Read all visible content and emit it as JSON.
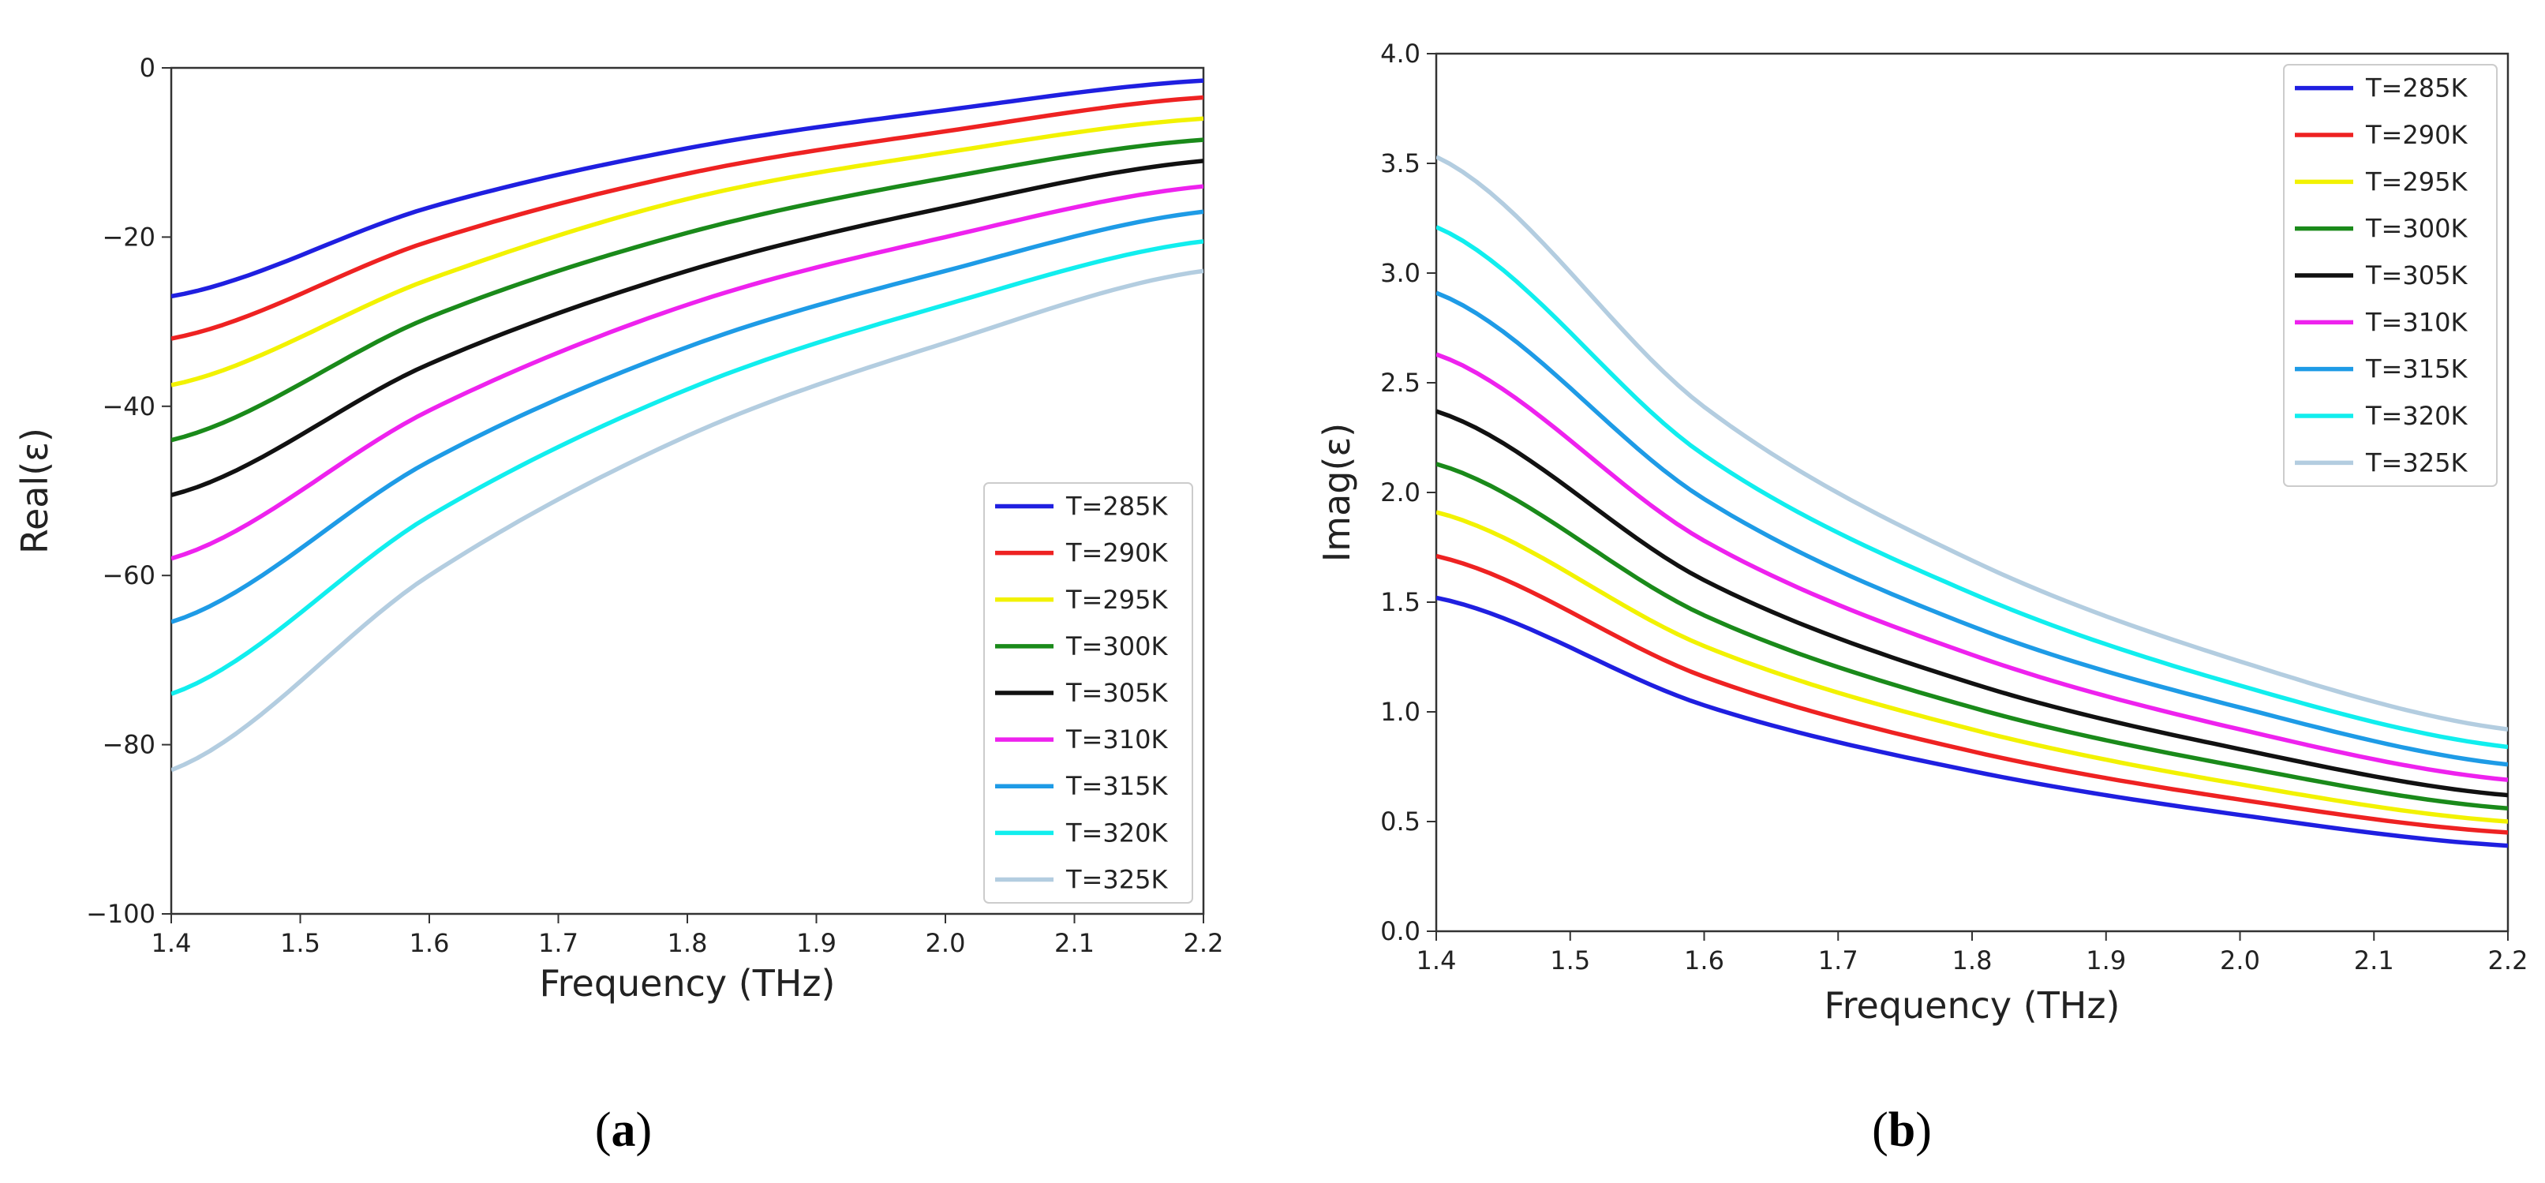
{
  "chart_data": [
    {
      "type": "line",
      "caption": "a",
      "xlabel": "Frequency (THz)",
      "ylabel": "Real(ε)",
      "xlim": [
        1.4,
        2.2
      ],
      "ylim": [
        -100,
        0
      ],
      "xticks": [
        "1.4",
        "1.5",
        "1.6",
        "1.7",
        "1.8",
        "1.9",
        "2.0",
        "2.1",
        "2.2"
      ],
      "yticks": [
        "0",
        "−20",
        "−40",
        "−60",
        "−80",
        "−100"
      ],
      "ytick_values": [
        0,
        -20,
        -40,
        -60,
        -80,
        -100
      ],
      "legend_position": "lower-right",
      "series": [
        {
          "name": "T=285K",
          "color": "#1f1fe0",
          "x": [
            1.4,
            1.6,
            1.8,
            2.0,
            2.2
          ],
          "values": [
            -27.0,
            -16.5,
            -9.5,
            -5.0,
            -1.5
          ]
        },
        {
          "name": "T=290K",
          "color": "#ee2222",
          "x": [
            1.4,
            1.6,
            1.8,
            2.0,
            2.2
          ],
          "values": [
            -32.0,
            -20.5,
            -12.5,
            -7.5,
            -3.5
          ]
        },
        {
          "name": "T=295K",
          "color": "#f2f200",
          "x": [
            1.4,
            1.6,
            1.8,
            2.0,
            2.2
          ],
          "values": [
            -37.5,
            -25.0,
            -15.5,
            -10.0,
            -6.0
          ]
        },
        {
          "name": "T=300K",
          "color": "#1a8a1a",
          "x": [
            1.4,
            1.6,
            1.8,
            2.0,
            2.2
          ],
          "values": [
            -44.0,
            -29.5,
            -19.5,
            -13.0,
            -8.5
          ]
        },
        {
          "name": "T=305K",
          "color": "#111111",
          "x": [
            1.4,
            1.6,
            1.8,
            2.0,
            2.2
          ],
          "values": [
            -50.5,
            -35.0,
            -24.0,
            -16.5,
            -11.0
          ]
        },
        {
          "name": "T=310K",
          "color": "#ee22ee",
          "x": [
            1.4,
            1.6,
            1.8,
            2.0,
            2.2
          ],
          "values": [
            -58.0,
            -40.5,
            -28.0,
            -20.0,
            -14.0
          ]
        },
        {
          "name": "T=315K",
          "color": "#1e9be6",
          "x": [
            1.4,
            1.6,
            1.8,
            2.0,
            2.2
          ],
          "values": [
            -65.5,
            -46.5,
            -33.0,
            -24.0,
            -17.0
          ]
        },
        {
          "name": "T=320K",
          "color": "#11eeee",
          "x": [
            1.4,
            1.6,
            1.8,
            2.0,
            2.2
          ],
          "values": [
            -74.0,
            -53.0,
            -38.0,
            -28.0,
            -20.5
          ]
        },
        {
          "name": "T=325K",
          "color": "#b3cde0",
          "x": [
            1.4,
            1.6,
            1.8,
            2.0,
            2.2
          ],
          "values": [
            -83.0,
            -60.0,
            -43.5,
            -32.5,
            -24.0
          ]
        }
      ]
    },
    {
      "type": "line",
      "caption": "b",
      "xlabel": "Frequency (THz)",
      "ylabel": "Imag(ε)",
      "xlim": [
        1.4,
        2.2
      ],
      "ylim": [
        0,
        4
      ],
      "xticks": [
        "1.4",
        "1.5",
        "1.6",
        "1.7",
        "1.8",
        "1.9",
        "2.0",
        "2.1",
        "2.2"
      ],
      "yticks": [
        "0.0",
        "0.5",
        "1.0",
        "1.5",
        "2.0",
        "2.5",
        "3.0",
        "3.5",
        "4.0"
      ],
      "ytick_values": [
        0,
        0.5,
        1.0,
        1.5,
        2.0,
        2.5,
        3.0,
        3.5,
        4.0
      ],
      "legend_position": "upper-right",
      "series": [
        {
          "name": "T=285K",
          "color": "#1f1fe0",
          "x": [
            1.4,
            1.6,
            1.8,
            2.0,
            2.2
          ],
          "values": [
            1.52,
            1.03,
            0.73,
            0.53,
            0.39
          ]
        },
        {
          "name": "T=290K",
          "color": "#ee2222",
          "x": [
            1.4,
            1.6,
            1.8,
            2.0,
            2.2
          ],
          "values": [
            1.71,
            1.16,
            0.82,
            0.6,
            0.45
          ]
        },
        {
          "name": "T=295K",
          "color": "#f2f200",
          "x": [
            1.4,
            1.6,
            1.8,
            2.0,
            2.2
          ],
          "values": [
            1.91,
            1.3,
            0.92,
            0.67,
            0.5
          ]
        },
        {
          "name": "T=300K",
          "color": "#1a8a1a",
          "x": [
            1.4,
            1.6,
            1.8,
            2.0,
            2.2
          ],
          "values": [
            2.13,
            1.44,
            1.02,
            0.75,
            0.56
          ]
        },
        {
          "name": "T=305K",
          "color": "#111111",
          "x": [
            1.4,
            1.6,
            1.8,
            2.0,
            2.2
          ],
          "values": [
            2.37,
            1.6,
            1.13,
            0.83,
            0.62
          ]
        },
        {
          "name": "T=310K",
          "color": "#ee22ee",
          "x": [
            1.4,
            1.6,
            1.8,
            2.0,
            2.2
          ],
          "values": [
            2.63,
            1.78,
            1.26,
            0.92,
            0.69
          ]
        },
        {
          "name": "T=315K",
          "color": "#1e9be6",
          "x": [
            1.4,
            1.6,
            1.8,
            2.0,
            2.2
          ],
          "values": [
            2.91,
            1.97,
            1.39,
            1.02,
            0.76
          ]
        },
        {
          "name": "T=320K",
          "color": "#11eeee",
          "x": [
            1.4,
            1.6,
            1.8,
            2.0,
            2.2
          ],
          "values": [
            3.21,
            2.17,
            1.54,
            1.12,
            0.84
          ]
        },
        {
          "name": "T=325K",
          "color": "#b3cde0",
          "x": [
            1.4,
            1.6,
            1.8,
            2.0,
            2.2
          ],
          "values": [
            3.53,
            2.39,
            1.69,
            1.23,
            0.92
          ]
        }
      ]
    }
  ]
}
